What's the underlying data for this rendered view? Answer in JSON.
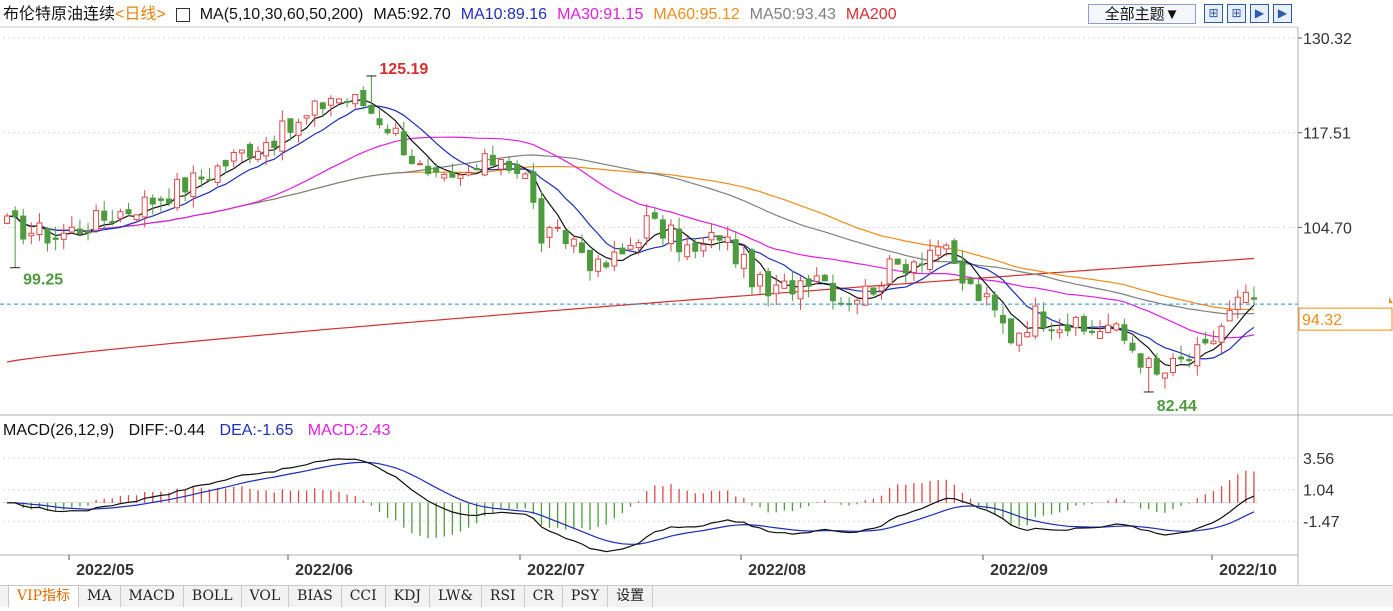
{
  "header": {
    "instrument": "布伦特原油连续",
    "period": "<日线>",
    "ma_icon": "chart-icon",
    "ma_labels": [
      {
        "text": "MA(5,10,30,60,50,200)",
        "color": "#111111"
      },
      {
        "text": "MA5:92.70",
        "color": "#111111"
      },
      {
        "text": "MA10:89.16",
        "color": "#1c2fb8"
      },
      {
        "text": "MA30:91.15",
        "color": "#e020e0"
      },
      {
        "text": "MA60:95.12",
        "color": "#f08c1a"
      },
      {
        "text": "MA50:93.43",
        "color": "#808080"
      },
      {
        "text": "MA200",
        "color": "#d23030"
      }
    ],
    "topic_button": "全部主题▼",
    "tool_icons": [
      "⊞",
      "⊞",
      "▶",
      "▶"
    ]
  },
  "macd_header": [
    {
      "text": "MACD(26,12,9)",
      "color": "#111111"
    },
    {
      "text": "DIFF:-0.44",
      "color": "#111111"
    },
    {
      "text": "DEA:-1.65",
      "color": "#1c2fb8"
    },
    {
      "text": "MACD:2.43",
      "color": "#e020e0"
    }
  ],
  "price_axis": [
    "130.32",
    "117.51",
    "104.70"
  ],
  "current_price": "94.32",
  "macd_axis": [
    "3.56",
    "1.04",
    "-1.47"
  ],
  "annotations": {
    "high": "125.19",
    "low_left": "99.25",
    "low": "82.44"
  },
  "x_labels": [
    "2022/05",
    "2022/06",
    "2022/07",
    "2022/08",
    "2022/09",
    "2022/10"
  ],
  "bottom_tabs": [
    {
      "label": "",
      "active": false
    },
    {
      "label": "VIP指标",
      "active": true
    },
    {
      "label": "MA",
      "active": false
    },
    {
      "label": "MACD",
      "active": false
    },
    {
      "label": "BOLL",
      "active": false
    },
    {
      "label": "VOL",
      "active": false
    },
    {
      "label": "BIAS",
      "active": false
    },
    {
      "label": "CCI",
      "active": false
    },
    {
      "label": "KDJ",
      "active": false
    },
    {
      "label": "LW&",
      "active": false
    },
    {
      "label": "RSI",
      "active": false
    },
    {
      "label": "CR",
      "active": false
    },
    {
      "label": "PSY",
      "active": false
    },
    {
      "label": "设置",
      "active": false
    }
  ],
  "colors": {
    "up": "#d94a4a",
    "down": "#4e9a3e",
    "grid": "#d8d8d8",
    "price_line": "#2b8fd6"
  },
  "chart_data": {
    "type": "candlestick",
    "price_range": [
      80.0,
      131.0
    ],
    "macd_range": [
      -4.0,
      4.6
    ],
    "current_price": 94.32,
    "anchors": [
      {
        "i": 0,
        "c": 105.0
      },
      {
        "i": 6,
        "c": 103.5
      },
      {
        "i": 12,
        "c": 106.0
      },
      {
        "i": 18,
        "c": 108.5
      },
      {
        "i": 24,
        "c": 111.5
      },
      {
        "i": 30,
        "c": 115.5
      },
      {
        "i": 36,
        "c": 118.5
      },
      {
        "i": 40,
        "c": 122.5
      },
      {
        "i": 44,
        "c": 121.5
      },
      {
        "i": 48,
        "c": 117.5
      },
      {
        "i": 52,
        "c": 111.0
      },
      {
        "i": 55,
        "c": 110.5
      },
      {
        "i": 58,
        "c": 112.5
      },
      {
        "i": 61,
        "c": 114.5
      },
      {
        "i": 64,
        "c": 111.5
      },
      {
        "i": 66,
        "c": 103.5
      },
      {
        "i": 70,
        "c": 103.0
      },
      {
        "i": 73,
        "c": 99.0
      },
      {
        "i": 76,
        "c": 101.0
      },
      {
        "i": 79,
        "c": 105.5
      },
      {
        "i": 82,
        "c": 103.5
      },
      {
        "i": 85,
        "c": 101.0
      },
      {
        "i": 88,
        "c": 104.0
      },
      {
        "i": 91,
        "c": 99.5
      },
      {
        "i": 94,
        "c": 95.5
      },
      {
        "i": 97,
        "c": 97.0
      },
      {
        "i": 100,
        "c": 99.0
      },
      {
        "i": 103,
        "c": 95.0
      },
      {
        "i": 106,
        "c": 96.0
      },
      {
        "i": 109,
        "c": 99.0
      },
      {
        "i": 112,
        "c": 100.5
      },
      {
        "i": 115,
        "c": 102.5
      },
      {
        "i": 118,
        "c": 97.5
      },
      {
        "i": 121,
        "c": 94.5
      },
      {
        "i": 124,
        "c": 90.0
      },
      {
        "i": 127,
        "c": 93.0
      },
      {
        "i": 130,
        "c": 92.0
      },
      {
        "i": 133,
        "c": 90.5
      },
      {
        "i": 136,
        "c": 91.5
      },
      {
        "i": 139,
        "c": 88.5
      },
      {
        "i": 142,
        "c": 84.5
      },
      {
        "i": 145,
        "c": 86.5
      },
      {
        "i": 148,
        "c": 88.0
      },
      {
        "i": 150,
        "c": 91.5
      },
      {
        "i": 152,
        "c": 94.5
      },
      {
        "i": 154,
        "c": 95.0
      }
    ],
    "bars": 155,
    "highlights": {
      "high_index": 45,
      "high": 125.19,
      "low_left_index": 1,
      "low_left": 99.25,
      "low_index": 141,
      "low": 82.44
    }
  }
}
